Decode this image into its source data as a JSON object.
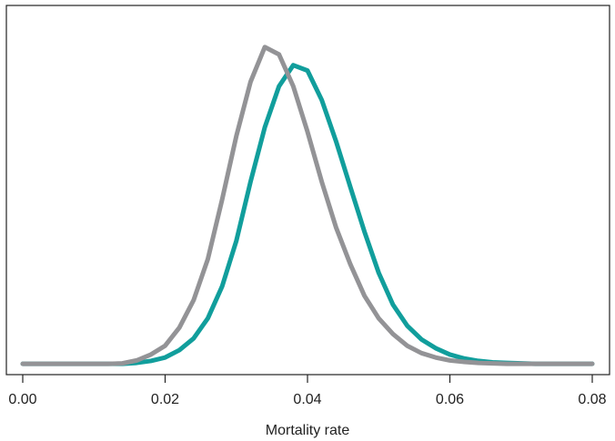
{
  "chart_data": {
    "type": "line",
    "xlabel": "Mortality rate",
    "x": [
      0,
      0.002,
      0.004,
      0.006,
      0.008,
      0.01,
      0.012,
      0.014,
      0.016,
      0.018,
      0.02,
      0.022,
      0.024,
      0.026,
      0.028,
      0.03,
      0.032,
      0.034,
      0.036,
      0.038,
      0.04,
      0.042,
      0.044,
      0.046,
      0.048,
      0.05,
      0.052,
      0.054,
      0.056,
      0.058,
      0.06,
      0.062,
      0.064,
      0.066,
      0.068,
      0.07,
      0.072,
      0.074,
      0.076,
      0.078,
      0.08
    ],
    "series": [
      {
        "color": "#119e9c",
        "values": [
          0,
          0,
          0,
          0,
          0,
          0,
          0,
          0,
          0.2,
          0.6,
          1.3,
          2.8,
          5.2,
          9.3,
          15.8,
          25.1,
          37.2,
          48.3,
          56.7,
          61,
          59.9,
          53.9,
          45.5,
          36.2,
          27,
          18.6,
          12.1,
          7.8,
          5,
          3.2,
          1.9,
          1.1,
          0.6,
          0.3,
          0.2,
          0.1,
          0,
          0,
          0,
          0,
          0
        ]
      },
      {
        "color": "#939396",
        "values": [
          0,
          0,
          0,
          0,
          0,
          0,
          0,
          0.1,
          0.7,
          1.9,
          3.7,
          7.4,
          13,
          21.4,
          33.5,
          46.5,
          57.6,
          64.7,
          63.2,
          56.7,
          47.4,
          37.2,
          27.9,
          20.4,
          13.9,
          9.3,
          6.1,
          3.7,
          2.2,
          1.3,
          0.7,
          0.4,
          0.2,
          0.1,
          0,
          0,
          0,
          0,
          0,
          0,
          0
        ]
      }
    ],
    "xlim": [
      0,
      0.08
    ],
    "xticks": [
      {
        "value": 0,
        "label": "0.00"
      },
      0.02,
      0.04,
      0.06,
      0.08
    ],
    "ylim": [
      -2.2,
      73.2
    ]
  }
}
